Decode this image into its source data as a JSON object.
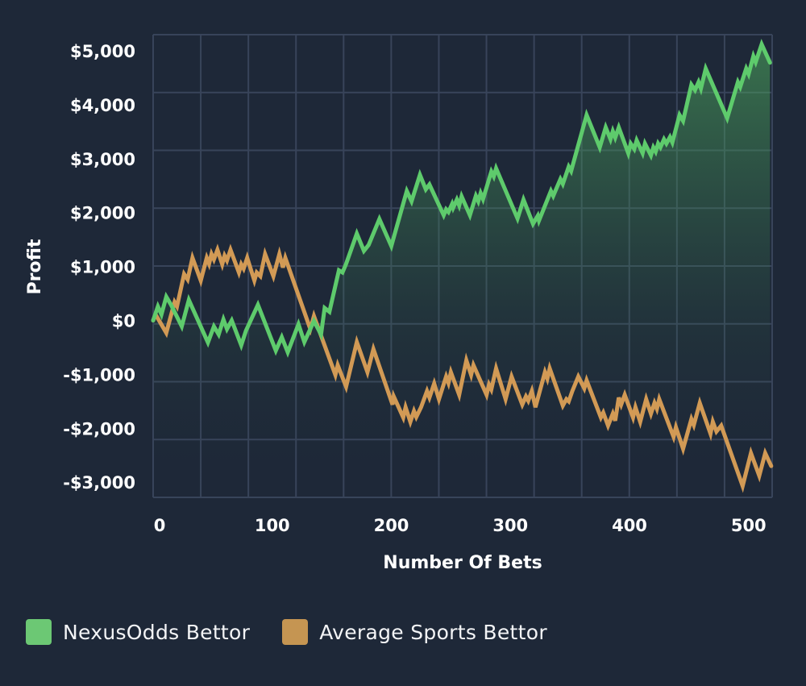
{
  "chart_data": {
    "type": "line",
    "title": "",
    "xlabel": "Number Of Bets",
    "ylabel": "Profit",
    "xlim": [
      0,
      520
    ],
    "ylim": [
      -3300,
      5300
    ],
    "grid": true,
    "legend_position": "bottom-left",
    "x_ticks": [
      {
        "value": 0,
        "label": "0"
      },
      {
        "value": 100,
        "label": "100"
      },
      {
        "value": 200,
        "label": "200"
      },
      {
        "value": 300,
        "label": "300"
      },
      {
        "value": 400,
        "label": "400"
      },
      {
        "value": 500,
        "label": "500"
      }
    ],
    "y_ticks": [
      {
        "value": 5000,
        "label": "$5,000"
      },
      {
        "value": 4000,
        "label": "$4,000"
      },
      {
        "value": 3000,
        "label": "$3,000"
      },
      {
        "value": 2000,
        "label": "$2,000"
      },
      {
        "value": 1000,
        "label": "$1,000"
      },
      {
        "value": 0,
        "label": "$0"
      },
      {
        "value": -1000,
        "label": "-$1,000"
      },
      {
        "value": -2000,
        "label": "-$2,000"
      },
      {
        "value": -3000,
        "label": "-$3,000"
      }
    ],
    "series": [
      {
        "name": "NexusOdds Bettor",
        "color": "#5ecb6c",
        "fill": true,
        "x": [
          0,
          4,
          7,
          11,
          15,
          24,
          30,
          46,
          51,
          55,
          59,
          62,
          66,
          74,
          78,
          88,
          103,
          108,
          113,
          122,
          127,
          135,
          141,
          144,
          148,
          156,
          159,
          162,
          171,
          177,
          181,
          190,
          200,
          213,
          217,
          224,
          229,
          232,
          244,
          246,
          248,
          251,
          252,
          255,
          257,
          259,
          266,
          271,
          273,
          275,
          277,
          284,
          286,
          288,
          306,
          311,
          319,
          323,
          324,
          334,
          336,
          342,
          344,
          349,
          351,
          364,
          375,
          380,
          384,
          386,
          388,
          391,
          399,
          401,
          404,
          406,
          411,
          413,
          418,
          420,
          422,
          424,
          426,
          429,
          431,
          434,
          436,
          442,
          445,
          452,
          455,
          458,
          460,
          464,
          482,
          491,
          493,
          498,
          500,
          504,
          506,
          511,
          518
        ],
        "y": [
          0,
          260,
          110,
          440,
          290,
          -110,
          380,
          -410,
          -110,
          -260,
          20,
          -160,
          0,
          -460,
          -190,
          290,
          -560,
          -310,
          -590,
          -70,
          -400,
          -10,
          -260,
          230,
          160,
          930,
          890,
          1050,
          1610,
          1290,
          1400,
          1880,
          1380,
          2400,
          2210,
          2700,
          2430,
          2520,
          1950,
          2060,
          2010,
          2160,
          2090,
          2240,
          2130,
          2300,
          1950,
          2310,
          2210,
          2360,
          2250,
          2760,
          2670,
          2820,
          1890,
          2240,
          1790,
          1940,
          1850,
          2400,
          2310,
          2620,
          2530,
          2850,
          2770,
          3810,
          3210,
          3580,
          3360,
          3510,
          3390,
          3580,
          3100,
          3280,
          3180,
          3340,
          3100,
          3280,
          3060,
          3210,
          3130,
          3280,
          3210,
          3360,
          3280,
          3400,
          3300,
          3810,
          3700,
          4370,
          4270,
          4420,
          4300,
          4670,
          3750,
          4420,
          4330,
          4670,
          4570,
          4900,
          4790,
          5120,
          4780
        ]
      },
      {
        "name": "Average Sports Bettor",
        "color": "#d29a55",
        "fill": false,
        "x": [
          0,
          2,
          11,
          18,
          20,
          26,
          29,
          33,
          40,
          45,
          47,
          49,
          51,
          54,
          58,
          60,
          62,
          65,
          72,
          74,
          76,
          79,
          85,
          87,
          90,
          94,
          101,
          106,
          109,
          111,
          132,
          135,
          153,
          155,
          162,
          171,
          180,
          185,
          201,
          202,
          210,
          212,
          216,
          219,
          221,
          225,
          230,
          232,
          236,
          240,
          246,
          248,
          250,
          257,
          263,
          267,
          269,
          280,
          282,
          284,
          288,
          296,
          301,
          310,
          313,
          315,
          318,
          321,
          329,
          331,
          333,
          344,
          347,
          349,
          352,
          357,
          362,
          364,
          376,
          378,
          382,
          386,
          388,
          391,
          393,
          396,
          403,
          405,
          409,
          414,
          418,
          421,
          423,
          425,
          437,
          439,
          445,
          452,
          454,
          459,
          468,
          470,
          473,
          477,
          495,
          502,
          509,
          514,
          519
        ],
        "y": [
          0,
          110,
          -230,
          340,
          260,
          860,
          760,
          1160,
          740,
          1160,
          1050,
          1230,
          1130,
          1310,
          1040,
          1200,
          1110,
          1310,
          890,
          1040,
          960,
          1160,
          740,
          890,
          820,
          1230,
          820,
          1230,
          980,
          1160,
          -160,
          80,
          -1010,
          -830,
          -1230,
          -400,
          -960,
          -530,
          -1560,
          -1410,
          -1800,
          -1610,
          -1880,
          -1680,
          -1790,
          -1610,
          -1310,
          -1430,
          -1170,
          -1460,
          -1040,
          -1160,
          -960,
          -1380,
          -740,
          -1010,
          -830,
          -1380,
          -1190,
          -1280,
          -890,
          -1460,
          -1040,
          -1560,
          -1410,
          -1490,
          -1310,
          -1610,
          -960,
          -1080,
          -890,
          -1580,
          -1460,
          -1500,
          -1310,
          -1040,
          -1260,
          -1110,
          -1800,
          -1710,
          -1950,
          -1730,
          -1860,
          -1430,
          -1560,
          -1380,
          -1800,
          -1610,
          -1880,
          -1460,
          -1730,
          -1530,
          -1640,
          -1460,
          -2160,
          -1980,
          -2380,
          -1830,
          -1940,
          -1530,
          -2100,
          -1880,
          -2060,
          -1950,
          -3070,
          -2460,
          -2880,
          -2460,
          -2700
        ]
      }
    ]
  },
  "legend": {
    "items": [
      {
        "label": "NexusOdds Bettor",
        "color": "#6cc874"
      },
      {
        "label": "Average Sports Bettor",
        "color": "#c59552"
      }
    ]
  }
}
